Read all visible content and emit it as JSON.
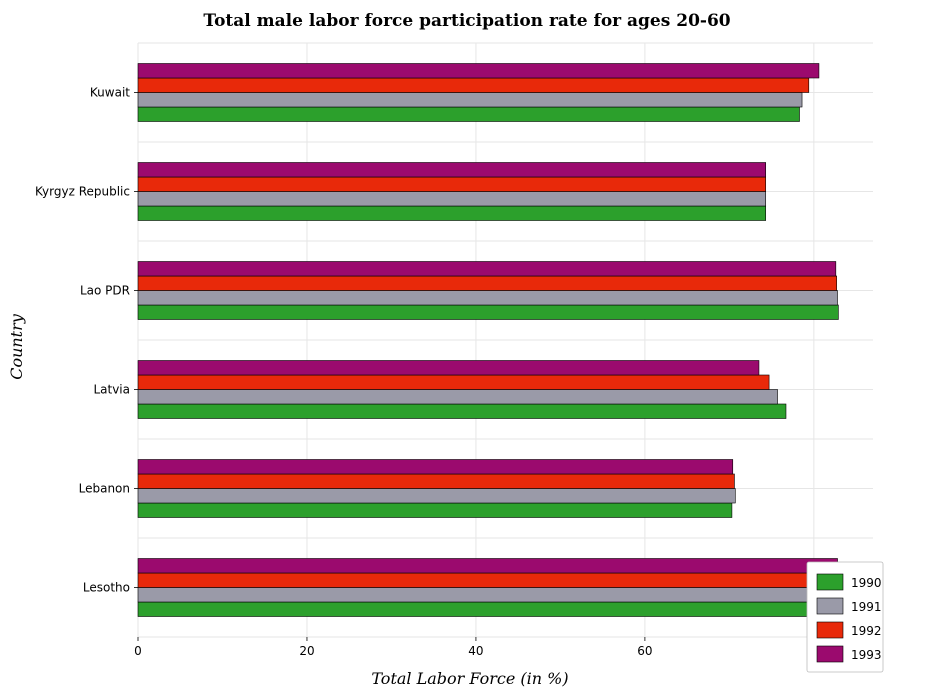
{
  "chart_data": {
    "type": "bar",
    "orientation": "horizontal",
    "title": "Total male labor force participation rate for ages 20-60",
    "xlabel": "Total Labor Force (in %)",
    "ylabel": "Country",
    "xlim": [
      0,
      87
    ],
    "xticks": [
      0,
      20,
      40,
      60,
      80
    ],
    "grid": true,
    "legend_position": "bottom-right",
    "categories": [
      "Kuwait",
      "Kyrgyz Republic",
      "Lao PDR",
      "Latvia",
      "Lebanon",
      "Lesotho"
    ],
    "series": [
      {
        "name": "1990",
        "color": "#2ca02c",
        "values": [
          78.3,
          74.3,
          82.9,
          76.7,
          70.3,
          83.1
        ]
      },
      {
        "name": "1991",
        "color": "#9a9aa8",
        "values": [
          78.6,
          74.3,
          82.8,
          75.7,
          70.7,
          82.9
        ]
      },
      {
        "name": "1992",
        "color": "#e8290a",
        "values": [
          79.4,
          74.3,
          82.7,
          74.7,
          70.6,
          83.0
        ]
      },
      {
        "name": "1993",
        "color": "#9b0a6e",
        "values": [
          80.6,
          74.3,
          82.6,
          73.5,
          70.4,
          82.8
        ]
      }
    ]
  }
}
